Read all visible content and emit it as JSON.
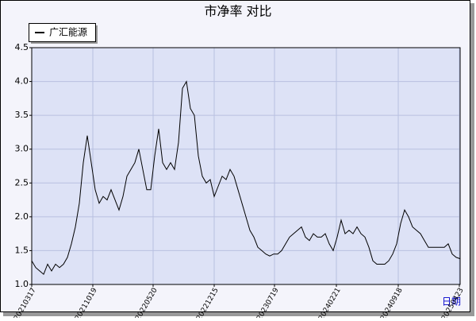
{
  "chart_data": {
    "type": "line",
    "title": "市净率 对比",
    "x_label": "日期",
    "x": [
      0,
      5,
      10,
      15,
      20,
      25,
      30,
      35,
      40,
      45,
      50,
      55,
      60,
      65,
      70,
      75,
      80,
      85,
      90,
      95,
      100,
      105,
      110,
      115,
      120,
      125,
      130,
      135,
      140,
      145,
      150,
      155,
      160,
      165,
      170,
      175,
      180,
      185,
      190,
      195,
      200,
      205,
      210,
      215,
      220,
      225,
      230,
      235,
      240,
      245,
      250,
      255,
      260,
      265,
      270,
      275,
      280,
      285,
      290,
      295,
      300,
      305,
      310,
      315,
      320,
      325,
      330,
      335,
      340,
      345,
      350,
      355,
      360,
      365,
      370,
      375,
      380,
      385,
      390,
      395,
      400,
      405,
      410,
      415,
      420,
      425,
      430,
      435,
      440,
      445,
      450,
      455,
      460,
      465,
      470,
      475,
      480,
      485,
      490,
      495,
      500,
      505,
      510,
      515,
      520,
      525,
      530,
      535,
      540
    ],
    "series": [
      {
        "name": "广汇能源",
        "color": "#000000",
        "values": [
          1.35,
          1.25,
          1.2,
          1.15,
          1.3,
          1.2,
          1.3,
          1.25,
          1.3,
          1.4,
          1.6,
          1.85,
          2.2,
          2.8,
          3.2,
          2.8,
          2.4,
          2.2,
          2.3,
          2.25,
          2.4,
          2.25,
          2.1,
          2.3,
          2.6,
          2.7,
          2.8,
          3.0,
          2.7,
          2.4,
          2.4,
          2.9,
          3.3,
          2.8,
          2.7,
          2.8,
          2.7,
          3.1,
          3.9,
          4.0,
          3.6,
          3.5,
          2.9,
          2.6,
          2.5,
          2.55,
          2.3,
          2.45,
          2.6,
          2.55,
          2.7,
          2.6,
          2.4,
          2.2,
          2.0,
          1.8,
          1.7,
          1.55,
          1.5,
          1.45,
          1.42,
          1.45,
          1.45,
          1.5,
          1.6,
          1.7,
          1.75,
          1.8,
          1.85,
          1.7,
          1.65,
          1.75,
          1.7,
          1.7,
          1.75,
          1.6,
          1.5,
          1.7,
          1.95,
          1.75,
          1.8,
          1.75,
          1.85,
          1.75,
          1.7,
          1.55,
          1.35,
          1.3,
          1.3,
          1.3,
          1.35,
          1.45,
          1.6,
          1.9,
          2.1,
          2.0,
          1.85,
          1.8,
          1.75,
          1.65,
          1.55,
          1.55,
          1.55,
          1.55,
          1.55,
          1.6,
          1.45,
          1.4,
          1.38
        ]
      }
    ],
    "xlim": [
      0,
      540
    ],
    "xticks": [
      {
        "value": 0,
        "label": "20210317"
      },
      {
        "value": 77,
        "label": "20211019"
      },
      {
        "value": 153,
        "label": "20220520"
      },
      {
        "value": 230,
        "label": "20221215"
      },
      {
        "value": 306,
        "label": "20230719"
      },
      {
        "value": 384,
        "label": "20240221"
      },
      {
        "value": 462,
        "label": "20240918"
      },
      {
        "value": 539,
        "label": "20250423"
      }
    ],
    "ylim": [
      1.0,
      4.5
    ],
    "yticks": [
      {
        "value": 1.0,
        "label": "1.0"
      },
      {
        "value": 1.5,
        "label": "1.5"
      },
      {
        "value": 2.0,
        "label": "2.0"
      },
      {
        "value": 2.5,
        "label": "2.5"
      },
      {
        "value": 3.0,
        "label": "3.0"
      },
      {
        "value": 3.5,
        "label": "3.5"
      },
      {
        "value": 4.0,
        "label": "4.0"
      },
      {
        "value": 4.5,
        "label": "4.5"
      }
    ],
    "grid": true,
    "legend": "top-left"
  }
}
